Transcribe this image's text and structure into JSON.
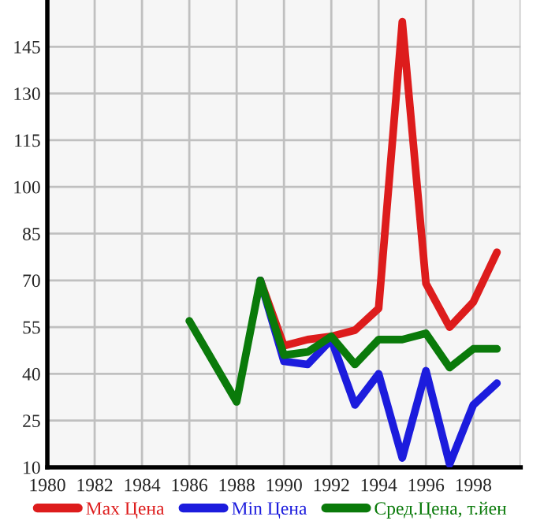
{
  "chart_data": {
    "type": "line",
    "x": [
      1986,
      1987,
      1988,
      1989,
      1990,
      1991,
      1992,
      1993,
      1994,
      1995,
      1996,
      1997,
      1998,
      1999
    ],
    "series": [
      {
        "name": "Max Цена",
        "color": "#dd1c1c",
        "values": [
          null,
          null,
          null,
          70,
          49,
          51,
          52,
          54,
          61,
          153,
          69,
          55,
          63,
          79
        ]
      },
      {
        "name": "Min Цена",
        "color": "#1c1cdd",
        "values": [
          null,
          null,
          null,
          70,
          44,
          43,
          51,
          30,
          40,
          13,
          41,
          11,
          30,
          37
        ]
      },
      {
        "name": "Сред.Цена, т.йен",
        "color": "#0a7a0a",
        "values": [
          57,
          44,
          31,
          70,
          46,
          47,
          52,
          43,
          51,
          51,
          53,
          42,
          48,
          48
        ]
      }
    ],
    "xlim": [
      1980,
      2000
    ],
    "xticks": [
      1980,
      1982,
      1984,
      1986,
      1988,
      1990,
      1992,
      1994,
      1996,
      1998,
      {
        "value": 2000,
        "label": null
      }
    ],
    "ylim": [
      10,
      160
    ],
    "yticks": [
      10,
      25,
      40,
      55,
      70,
      85,
      100,
      115,
      130,
      145
    ],
    "grid": true,
    "legend": "bottom",
    "marker": "none",
    "line_style": "solid"
  }
}
